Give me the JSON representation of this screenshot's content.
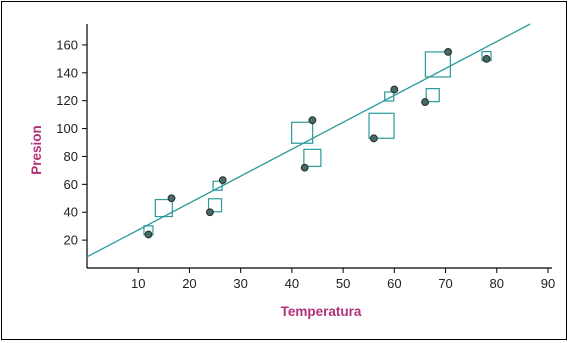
{
  "chart_data": {
    "type": "scatter",
    "xlabel": "Temperatura",
    "ylabel": "Presion",
    "xlim": [
      0,
      90
    ],
    "ylim": [
      0,
      175
    ],
    "x_ticks": [
      10,
      20,
      30,
      40,
      50,
      60,
      70,
      80,
      90
    ],
    "y_ticks": [
      20,
      40,
      60,
      80,
      100,
      120,
      140,
      160
    ],
    "grid": false,
    "legend": "none",
    "colors": {
      "axis_title": "#b0307a",
      "trend_line": "#2a9a9a",
      "square_marker": "#2a9a9a",
      "point_fill": "#4a6a64",
      "point_stroke": "#1e2e2a",
      "axis": "#000000"
    },
    "points": [
      {
        "x": 12,
        "y": 24
      },
      {
        "x": 16.5,
        "y": 50
      },
      {
        "x": 24,
        "y": 40
      },
      {
        "x": 26.5,
        "y": 63
      },
      {
        "x": 42.5,
        "y": 72
      },
      {
        "x": 44,
        "y": 106
      },
      {
        "x": 56,
        "y": 93
      },
      {
        "x": 60,
        "y": 128
      },
      {
        "x": 66,
        "y": 119
      },
      {
        "x": 70.5,
        "y": 155
      },
      {
        "x": 78,
        "y": 150
      }
    ],
    "fitted": [
      {
        "x": 12,
        "y": 27,
        "size": 1
      },
      {
        "x": 15,
        "y": 43,
        "size": 3
      },
      {
        "x": 25,
        "y": 45,
        "size": 2
      },
      {
        "x": 25.5,
        "y": 59,
        "size": 1
      },
      {
        "x": 42,
        "y": 97,
        "size": 4
      },
      {
        "x": 44,
        "y": 79,
        "size": 3
      },
      {
        "x": 57.5,
        "y": 102,
        "size": 5
      },
      {
        "x": 59,
        "y": 123,
        "size": 1
      },
      {
        "x": 67.5,
        "y": 124,
        "size": 2
      },
      {
        "x": 68.5,
        "y": 146,
        "size": 5
      },
      {
        "x": 78,
        "y": 152,
        "size": 1
      }
    ],
    "trend_line": {
      "intercept": 8,
      "slope": 1.93
    }
  }
}
